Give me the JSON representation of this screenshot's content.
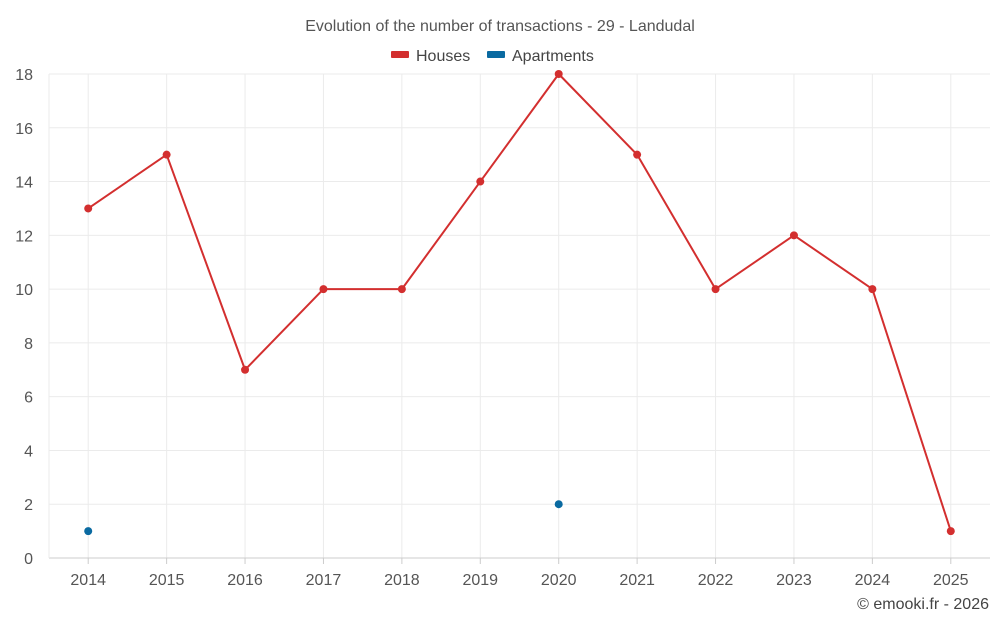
{
  "chart_data": {
    "type": "line",
    "title": "Evolution of the number of transactions - 29 - Landudal",
    "xlabel": "",
    "ylabel": "",
    "categories": [
      "2014",
      "2015",
      "2016",
      "2017",
      "2018",
      "2019",
      "2020",
      "2021",
      "2022",
      "2023",
      "2024",
      "2025"
    ],
    "ylim": [
      0,
      18
    ],
    "yticks": [
      "0",
      "2",
      "4",
      "6",
      "8",
      "10",
      "12",
      "14",
      "16",
      "18"
    ],
    "grid": true,
    "legend_position": "top-center",
    "series": [
      {
        "name": "Houses",
        "color": "#d32f2f",
        "values": [
          13,
          15,
          7,
          10,
          10,
          14,
          18,
          15,
          10,
          12,
          10,
          1
        ]
      },
      {
        "name": "Apartments",
        "color": "#0a6aa1",
        "values": [
          1,
          null,
          null,
          null,
          null,
          null,
          2,
          null,
          null,
          null,
          null,
          null
        ]
      }
    ]
  },
  "credit": "© emooki.fr - 2026"
}
